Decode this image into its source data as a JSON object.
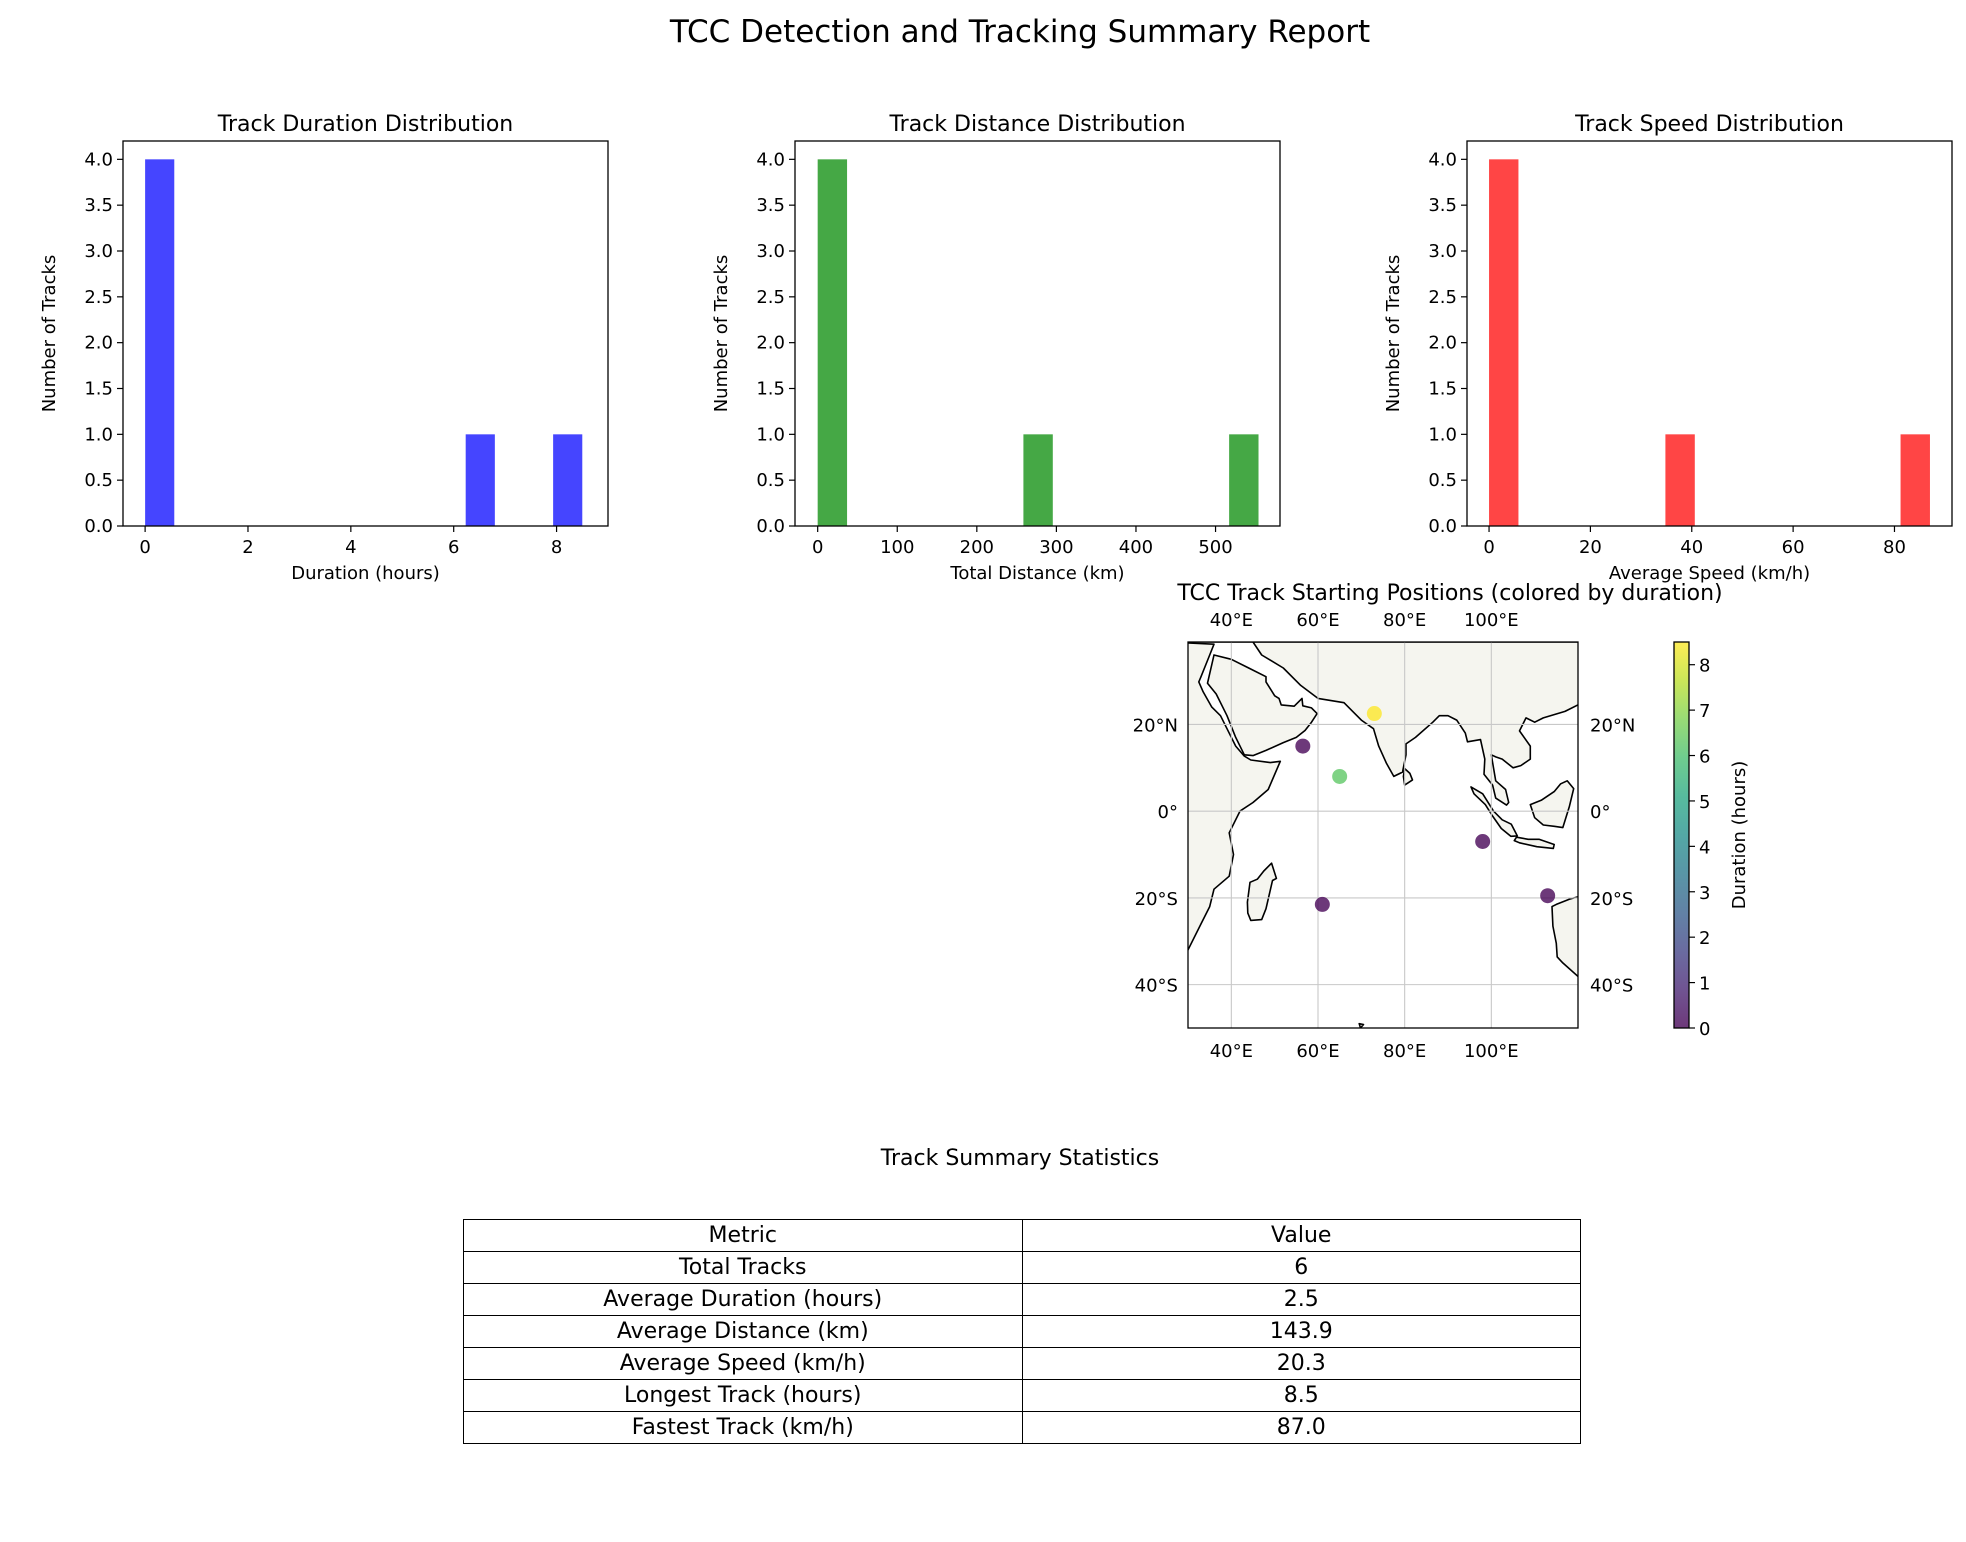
{
  "figure": {
    "suptitle": "TCC Detection and Tracking Summary Report"
  },
  "chart_data": [
    {
      "type": "bar",
      "title": "Track Duration Distribution",
      "xlabel": "Duration (hours)",
      "ylabel": "Number of Tracks",
      "xlim": [
        -0.43,
        9.0
      ],
      "ylim": [
        0,
        4.2
      ],
      "xticks": [
        0,
        2,
        4,
        6,
        8
      ],
      "yticks": [
        0.0,
        0.5,
        1.0,
        1.5,
        2.0,
        2.5,
        3.0,
        3.5,
        4.0
      ],
      "bin_edges": [
        0,
        0.567,
        1.133,
        1.7,
        2.267,
        2.833,
        3.4,
        3.967,
        4.533,
        5.1,
        5.667,
        6.233,
        6.8,
        7.367,
        7.933,
        8.5
      ],
      "counts": [
        4,
        0,
        0,
        0,
        0,
        0,
        0,
        0,
        0,
        0,
        0,
        1,
        0,
        0,
        1
      ],
      "color": "#4545ff"
    },
    {
      "type": "bar",
      "title": "Track Distance Distribution",
      "xlabel": "Total Distance (km)",
      "ylabel": "Number of Tracks",
      "xlim": [
        -28.5,
        581.0
      ],
      "ylim": [
        0,
        4.2
      ],
      "xticks": [
        0,
        100,
        200,
        300,
        400,
        500
      ],
      "yticks": [
        0.0,
        0.5,
        1.0,
        1.5,
        2.0,
        2.5,
        3.0,
        3.5,
        4.0
      ],
      "bin_edges": [
        0,
        36.93,
        73.87,
        110.8,
        147.73,
        184.67,
        221.6,
        258.53,
        295.47,
        332.4,
        369.33,
        406.27,
        443.2,
        480.13,
        517.07,
        554.0
      ],
      "counts": [
        4,
        0,
        0,
        0,
        0,
        0,
        0,
        1,
        0,
        0,
        0,
        0,
        0,
        0,
        1
      ],
      "color": "#45a845"
    },
    {
      "type": "bar",
      "title": "Track Speed Distribution",
      "xlabel": "Average Speed (km/h)",
      "ylabel": "Number of Tracks",
      "xlim": [
        -4.35,
        91.35
      ],
      "ylim": [
        0,
        4.2
      ],
      "xticks": [
        0,
        20,
        40,
        60,
        80
      ],
      "yticks": [
        0.0,
        0.5,
        1.0,
        1.5,
        2.0,
        2.5,
        3.0,
        3.5,
        4.0
      ],
      "bin_edges": [
        0,
        5.8,
        11.6,
        17.4,
        23.2,
        29.0,
        34.8,
        40.6,
        46.4,
        52.2,
        58.0,
        63.8,
        69.6,
        75.4,
        81.2,
        87.0
      ],
      "counts": [
        4,
        0,
        0,
        0,
        0,
        0,
        1,
        0,
        0,
        0,
        0,
        0,
        0,
        0,
        1
      ],
      "color": "#ff4545"
    },
    {
      "type": "scatter",
      "title": "TCC Track Starting Positions (colored by duration)",
      "lon_range": [
        30,
        120
      ],
      "lat_range": [
        -50,
        39
      ],
      "lon_ticks": [
        40,
        60,
        80,
        100
      ],
      "lon_tick_labels": [
        "40°E",
        "60°E",
        "80°E",
        "100°E"
      ],
      "lat_ticks": [
        20,
        0,
        -20,
        -40
      ],
      "lat_tick_labels": [
        "20°N",
        "0°",
        "20°S",
        "40°S"
      ],
      "points": [
        {
          "lon": 73,
          "lat": 22.5,
          "duration": 8.5
        },
        {
          "lon": 56.5,
          "lat": 15,
          "duration": 0
        },
        {
          "lon": 65,
          "lat": 8,
          "duration": 6.3
        },
        {
          "lon": 98,
          "lat": -7,
          "duration": 0
        },
        {
          "lon": 61,
          "lat": -21.5,
          "duration": 0
        },
        {
          "lon": 113,
          "lat": -19.5,
          "duration": 0
        }
      ],
      "colorbar": {
        "label": "Duration (hours)",
        "range": [
          0,
          8.5
        ],
        "ticks": [
          0,
          1,
          2,
          3,
          4,
          5,
          6,
          7,
          8
        ],
        "colormap": "viridis"
      }
    }
  ],
  "table": {
    "title": "Track Summary Statistics",
    "header": [
      "Metric",
      "Value"
    ],
    "rows": [
      [
        "Total Tracks",
        "6"
      ],
      [
        "Average Duration (hours)",
        "2.5"
      ],
      [
        "Average Distance (km)",
        "143.9"
      ],
      [
        "Average Speed (km/h)",
        "20.3"
      ],
      [
        "Longest Track (hours)",
        "8.5"
      ],
      [
        "Fastest Track (km/h)",
        "87.0"
      ]
    ]
  }
}
